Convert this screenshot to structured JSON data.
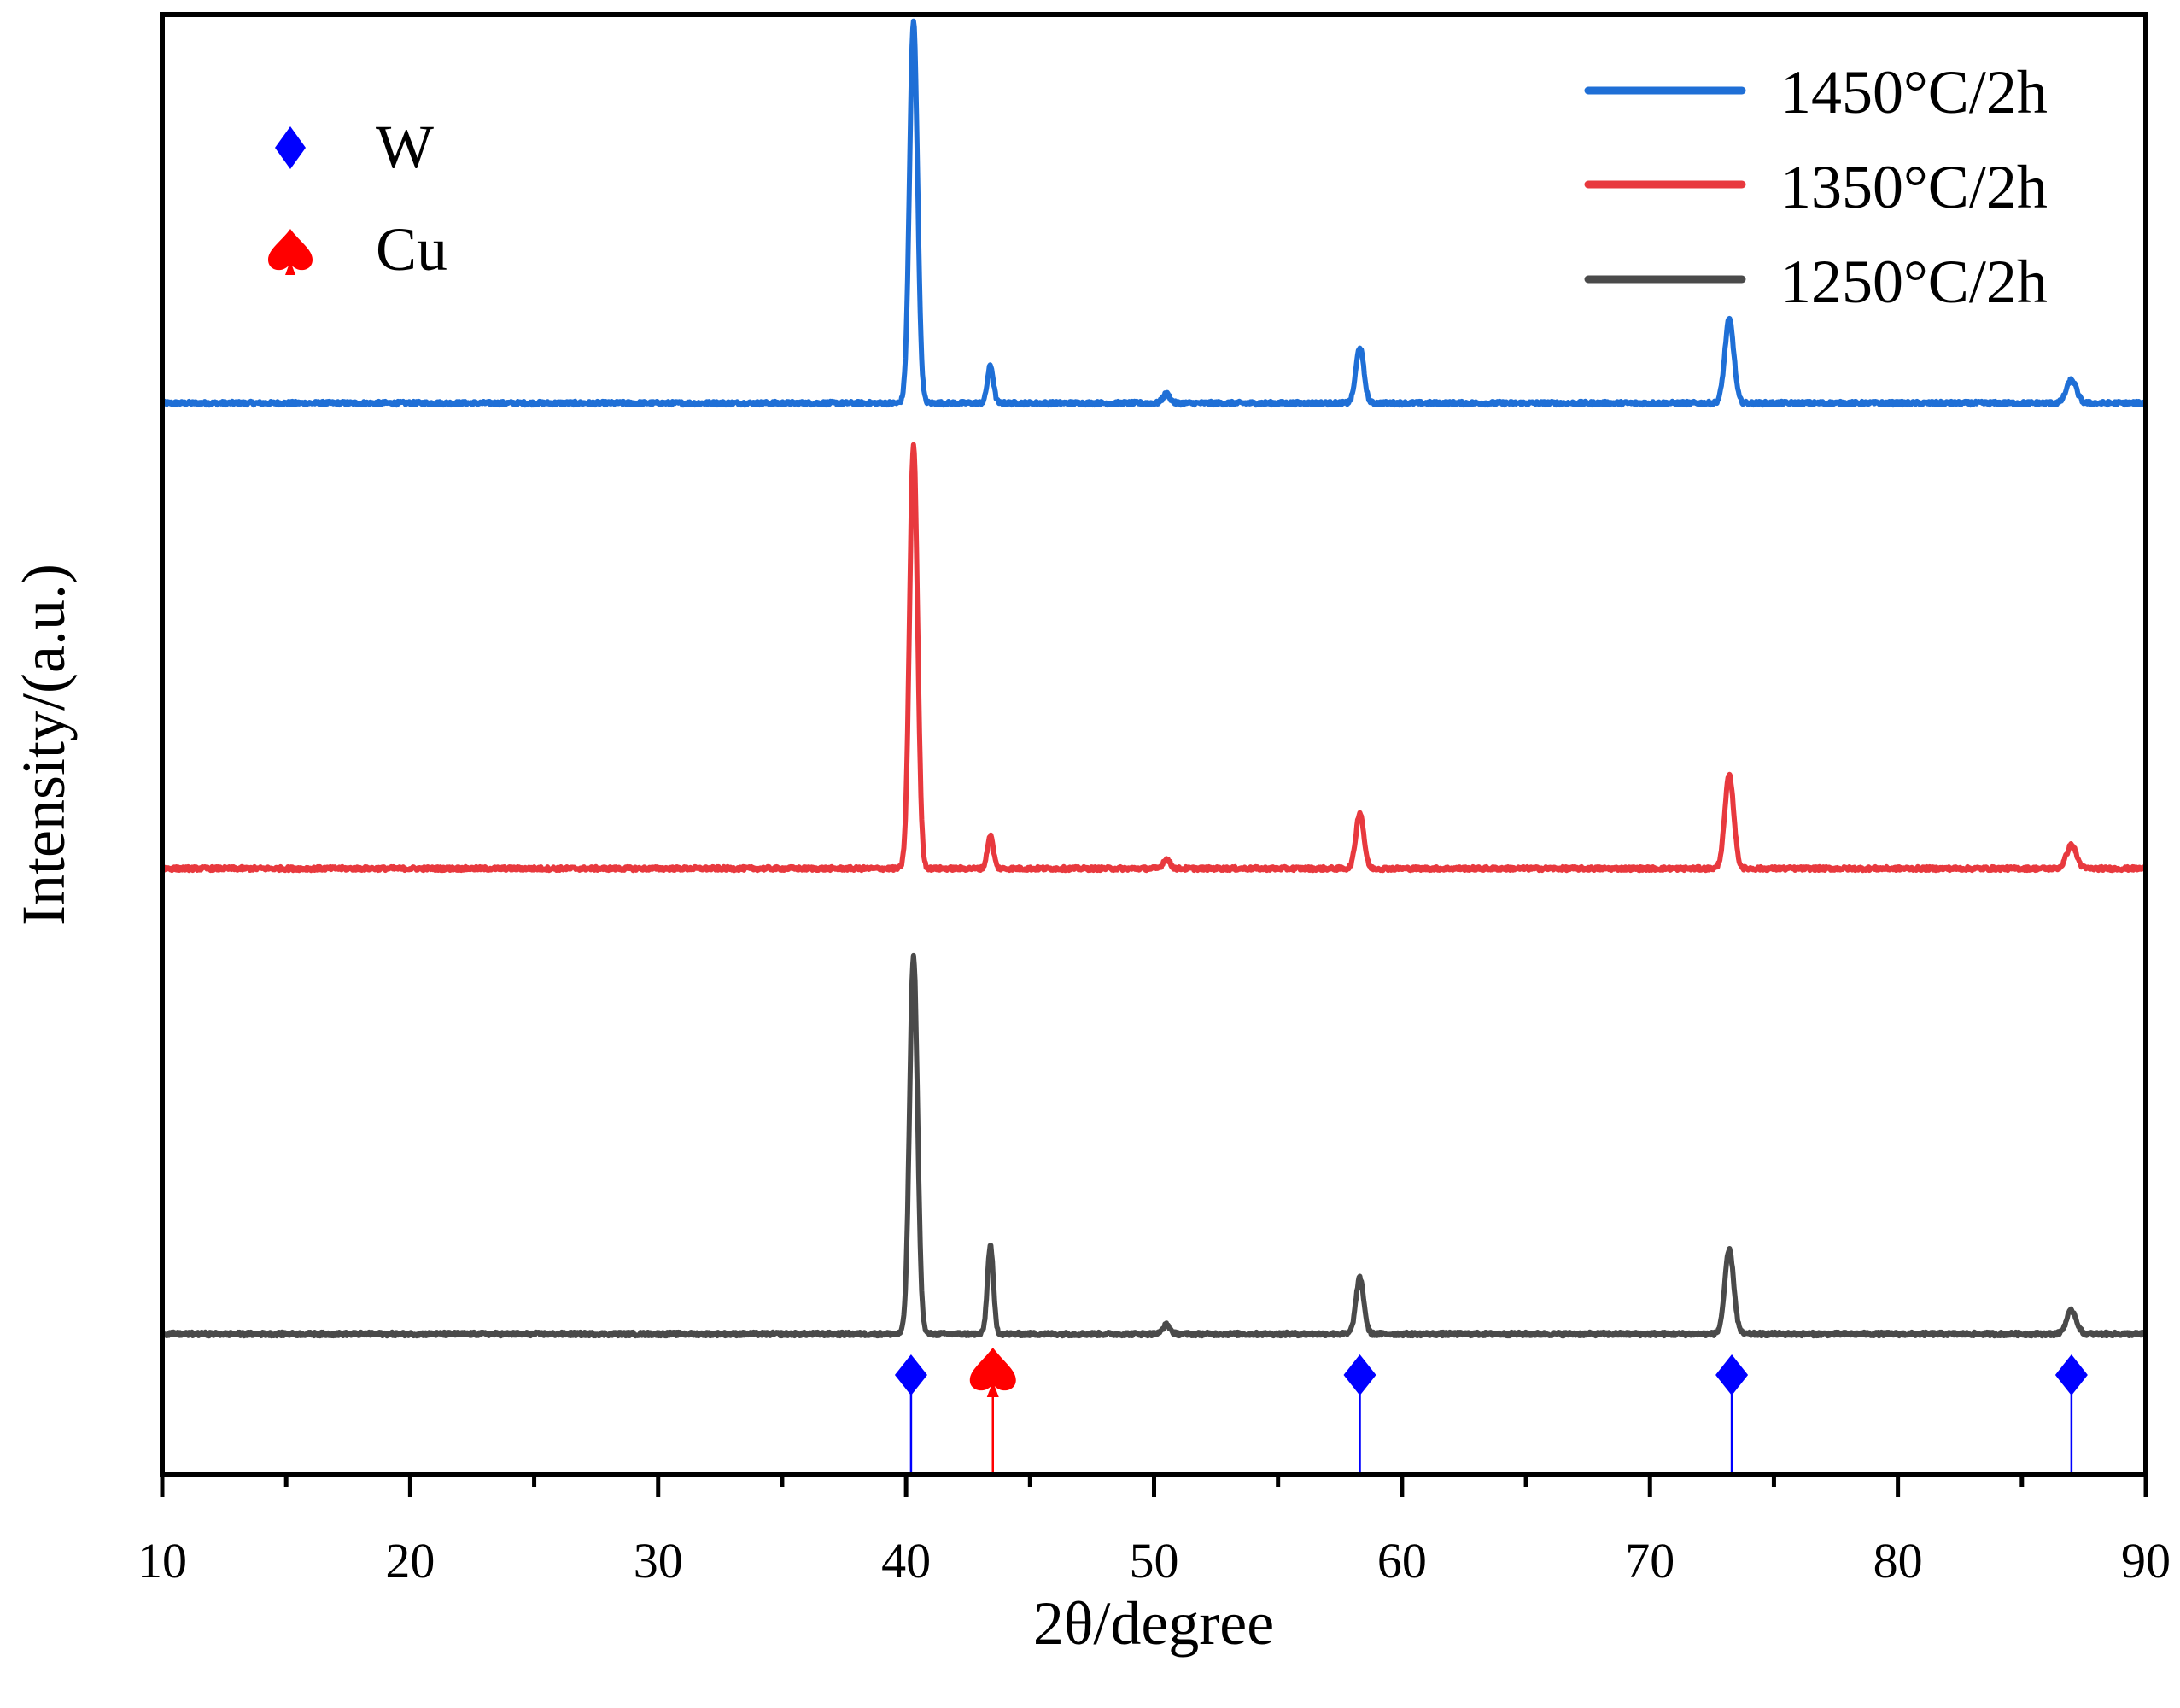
{
  "chart_data": {
    "type": "line",
    "title": "",
    "xlabel": "2θ/degree",
    "ylabel": "Intensity/(a.u.)",
    "xlim": [
      10,
      90
    ],
    "x_ticks": [
      "10",
      "20",
      "30",
      "40",
      "50",
      "60",
      "70",
      "80",
      "90"
    ],
    "y_ticks_visible": false,
    "grid": false,
    "legend_position": "top-right",
    "series": [
      {
        "name": "1450°C/2h",
        "color": "#1f6fd6",
        "offset": 2.0,
        "peaks": [
          {
            "x": 40.3,
            "height": 0.82,
            "width": 0.16
          },
          {
            "x": 43.4,
            "height": 0.08,
            "width": 0.12
          },
          {
            "x": 50.5,
            "height": 0.02,
            "width": 0.14
          },
          {
            "x": 58.3,
            "height": 0.12,
            "width": 0.16
          },
          {
            "x": 73.2,
            "height": 0.18,
            "width": 0.18
          },
          {
            "x": 87.0,
            "height": 0.05,
            "width": 0.2
          }
        ]
      },
      {
        "name": "1350°C/2h",
        "color": "#e8393e",
        "offset": 1.0,
        "peaks": [
          {
            "x": 40.3,
            "height": 0.91,
            "width": 0.16
          },
          {
            "x": 43.4,
            "height": 0.07,
            "width": 0.12
          },
          {
            "x": 50.5,
            "height": 0.02,
            "width": 0.14
          },
          {
            "x": 58.3,
            "height": 0.12,
            "width": 0.16
          },
          {
            "x": 73.2,
            "height": 0.2,
            "width": 0.18
          },
          {
            "x": 87.0,
            "height": 0.05,
            "width": 0.2
          }
        ]
      },
      {
        "name": "1250°C/2h",
        "color": "#4a4a4a",
        "offset": 0.0,
        "peaks": [
          {
            "x": 40.3,
            "height": 0.81,
            "width": 0.16
          },
          {
            "x": 43.4,
            "height": 0.19,
            "width": 0.12
          },
          {
            "x": 50.5,
            "height": 0.02,
            "width": 0.14
          },
          {
            "x": 58.3,
            "height": 0.12,
            "width": 0.16
          },
          {
            "x": 73.2,
            "height": 0.18,
            "width": 0.18
          },
          {
            "x": 87.0,
            "height": 0.05,
            "width": 0.2
          }
        ]
      }
    ],
    "reference_lines": [
      {
        "phase": "W",
        "x": 40.2,
        "color": "#0000ff",
        "marker": "diamond"
      },
      {
        "phase": "Cu",
        "x": 43.5,
        "color": "#ff0000",
        "marker": "spade"
      },
      {
        "phase": "W",
        "x": 58.3,
        "color": "#0000ff",
        "marker": "diamond"
      },
      {
        "phase": "W",
        "x": 73.3,
        "color": "#0000ff",
        "marker": "diamond"
      },
      {
        "phase": "W",
        "x": 87.0,
        "color": "#0000ff",
        "marker": "diamond"
      }
    ],
    "phase_legend": [
      {
        "label": "W",
        "color": "#0000ff",
        "marker": "diamond"
      },
      {
        "label": "Cu",
        "color": "#ff0000",
        "marker": "spade"
      }
    ]
  }
}
